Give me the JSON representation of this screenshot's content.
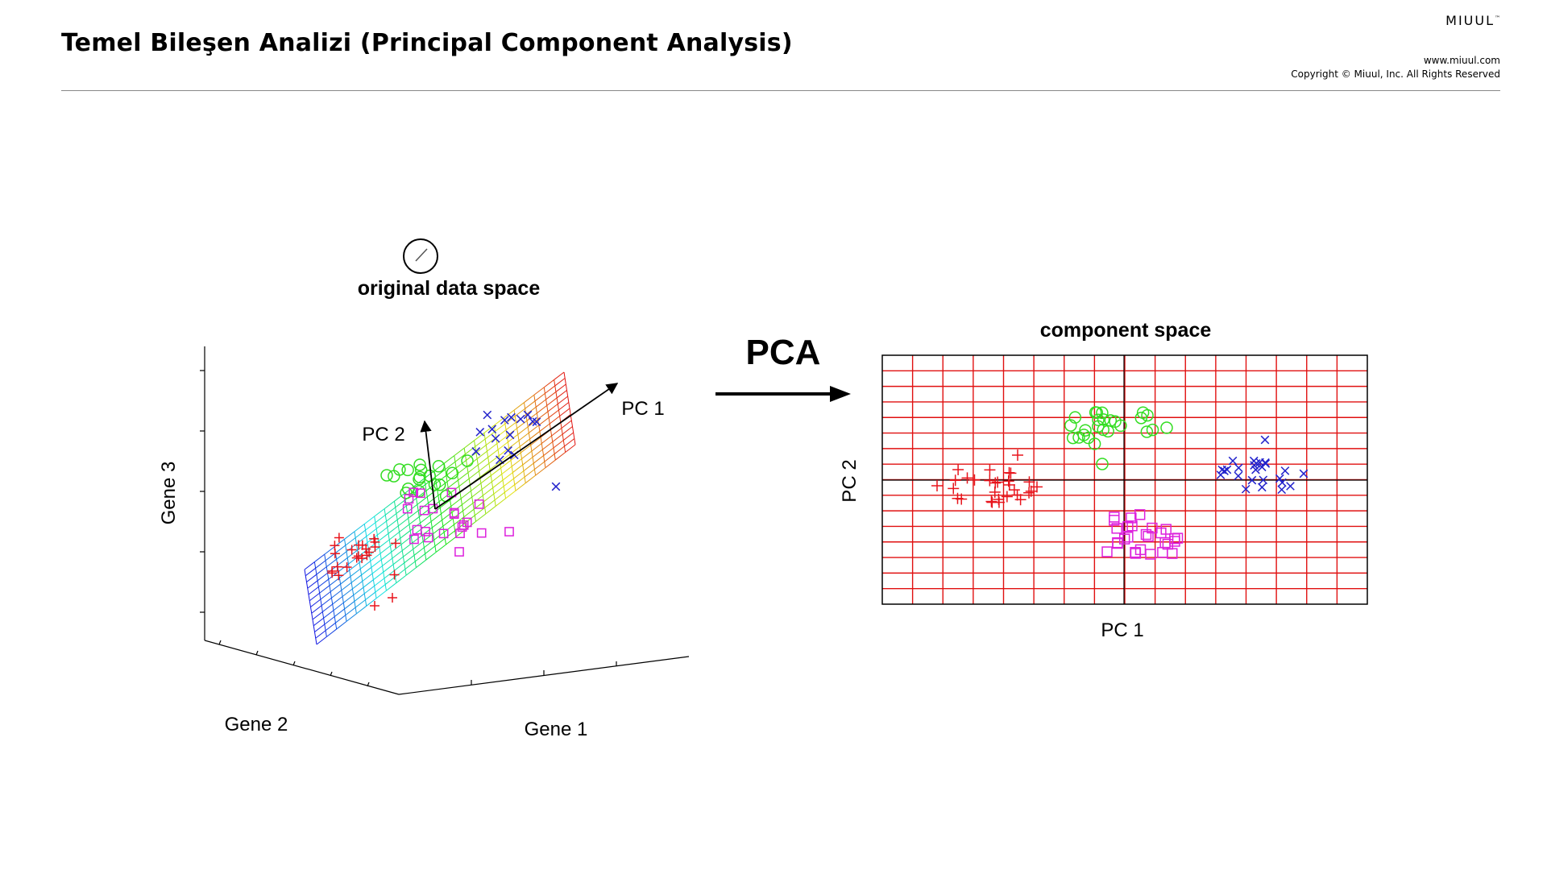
{
  "header": {
    "title": "Temel Bileşen Analizi (Principal Component Analysis)",
    "brand": "MIUUL",
    "brand_tm": "™",
    "website": "www.miuul.com",
    "copyright": "Copyright © Miuul, Inc. All Rights Reserved"
  },
  "left_panel": {
    "title": "original data space",
    "axis_z": "Gene 3",
    "axis_y": "Gene 2",
    "axis_x": "Gene 1",
    "pc1_label": "PC 1",
    "pc2_label": "PC 2"
  },
  "transform_label": "PCA",
  "right_panel": {
    "title": "component space",
    "xlabel": "PC 1",
    "ylabel": "PC 2"
  },
  "colors": {
    "red": "#e8141c",
    "green": "#33dd22",
    "blue": "#2222cc",
    "magenta": "#dd22dd",
    "grid": "#e01010"
  },
  "icons": {
    "cursor": "pencil-cursor-icon"
  }
}
